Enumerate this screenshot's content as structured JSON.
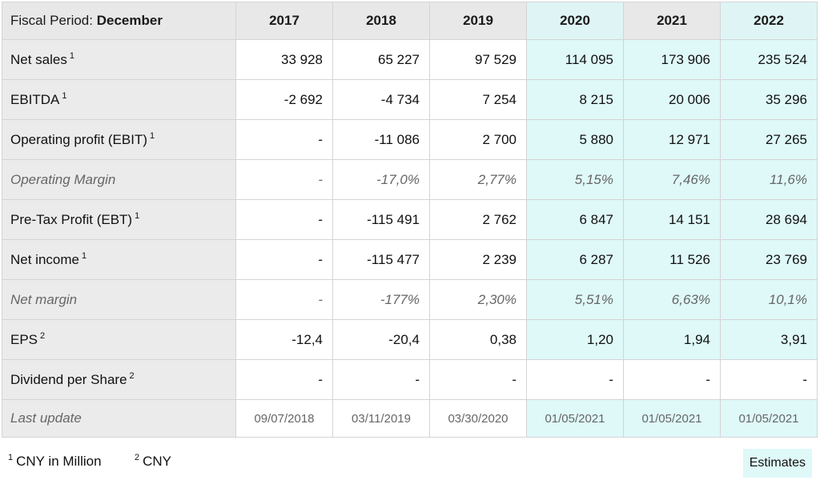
{
  "header": {
    "period_label": "Fiscal Period:",
    "period_value": "December",
    "years": [
      "2017",
      "2018",
      "2019",
      "2020",
      "2021",
      "2022"
    ]
  },
  "rows": {
    "net_sales": {
      "label": "Net sales",
      "note": "1",
      "values": [
        "33 928",
        "65 227",
        "97 529",
        "114 095",
        "173 906",
        "235 524"
      ]
    },
    "ebitda": {
      "label": "EBITDA",
      "note": "1",
      "values": [
        "-2 692",
        "-4 734",
        "7 254",
        "8 215",
        "20 006",
        "35 296"
      ]
    },
    "ebit": {
      "label": "Operating profit (EBIT)",
      "note": "1",
      "values": [
        "-",
        "-11 086",
        "2 700",
        "5 880",
        "12 971",
        "27 265"
      ]
    },
    "operating_margin": {
      "label": "Operating Margin",
      "values": [
        "-",
        "-17,0%",
        "2,77%",
        "5,15%",
        "7,46%",
        "11,6%"
      ]
    },
    "ebt": {
      "label": "Pre-Tax Profit (EBT)",
      "note": "1",
      "values": [
        "-",
        "-115 491",
        "2 762",
        "6 847",
        "14 151",
        "28 694"
      ]
    },
    "net_income": {
      "label": "Net income",
      "note": "1",
      "values": [
        "-",
        "-115 477",
        "2 239",
        "6 287",
        "11 526",
        "23 769"
      ]
    },
    "net_margin": {
      "label": "Net margin",
      "values": [
        "-",
        "-177%",
        "2,30%",
        "5,51%",
        "6,63%",
        "10,1%"
      ]
    },
    "eps": {
      "label": "EPS",
      "note": "2",
      "values": [
        "-12,4",
        "-20,4",
        "0,38",
        "1,20",
        "1,94",
        "3,91"
      ]
    },
    "dividend": {
      "label": "Dividend per Share",
      "note": "2",
      "values": [
        "-",
        "-",
        "-",
        "-",
        "-",
        "-"
      ]
    },
    "last_update": {
      "label": "Last update",
      "values": [
        "09/07/2018",
        "03/11/2019",
        "03/30/2020",
        "01/05/2021",
        "01/05/2021",
        "01/05/2021"
      ]
    }
  },
  "footer": {
    "note1_mark": "1",
    "note1_text": "CNY in Million",
    "note2_mark": "2",
    "note2_text": "CNY",
    "estimates_label": "Estimates"
  },
  "colors": {
    "estimate_bg": "#dff8f8",
    "header_bg": "#e8e8e8",
    "label_bg": "#ebebeb"
  }
}
